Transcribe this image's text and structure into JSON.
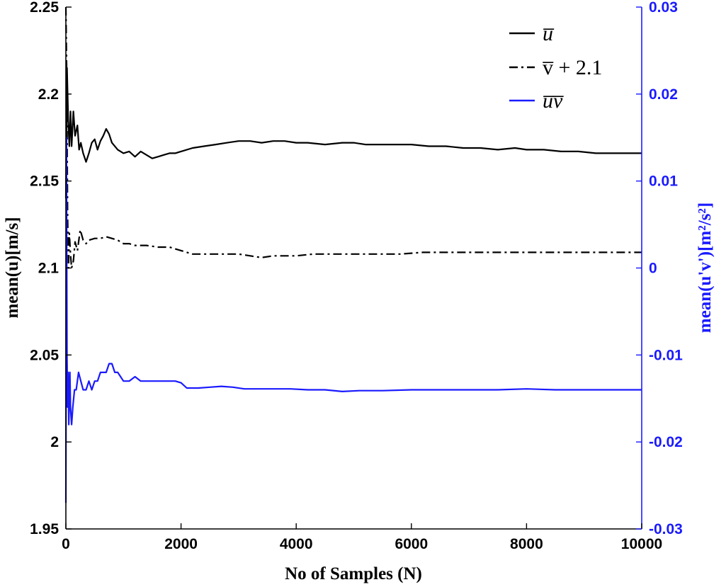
{
  "chart_data": {
    "type": "line",
    "xlabel": "No of Samples (N)",
    "ylabel": "mean(u)[m/s]",
    "y2label": "mean(u'v')[m²/s²]",
    "xlim": [
      0,
      10000
    ],
    "ylim": [
      1.95,
      2.25
    ],
    "y2lim": [
      -0.03,
      0.03
    ],
    "x_ticks": [
      "0",
      "2000",
      "4000",
      "6000",
      "8000",
      "10000"
    ],
    "y_ticks": [
      "1.95",
      "2",
      "2.05",
      "2.1",
      "2.15",
      "2.2",
      "2.25"
    ],
    "y2_ticks": [
      "-0.03",
      "-0.02",
      "-0.01",
      "0",
      "0.01",
      "0.02",
      "0.03"
    ],
    "grid": false,
    "legend_position": "top-right",
    "series": [
      {
        "name": "u̅",
        "axis": "left",
        "color": "#000000",
        "style": "solid",
        "x": [
          0,
          20,
          40,
          60,
          80,
          100,
          130,
          160,
          200,
          230,
          260,
          300,
          350,
          400,
          450,
          500,
          550,
          600,
          650,
          700,
          750,
          800,
          900,
          1000,
          1100,
          1200,
          1300,
          1400,
          1500,
          1600,
          1700,
          1800,
          1900,
          2000,
          2200,
          2400,
          2600,
          2800,
          3000,
          3200,
          3400,
          3600,
          3800,
          4000,
          4200,
          4500,
          4800,
          5000,
          5200,
          5500,
          5800,
          6000,
          6300,
          6600,
          6900,
          7200,
          7500,
          7800,
          8000,
          8300,
          8600,
          8900,
          9200,
          9400,
          9700,
          10000
        ],
        "values": [
          2.14,
          2.215,
          2.185,
          2.17,
          2.19,
          2.17,
          2.19,
          2.176,
          2.182,
          2.168,
          2.172,
          2.166,
          2.161,
          2.166,
          2.172,
          2.174,
          2.168,
          2.173,
          2.176,
          2.18,
          2.177,
          2.172,
          2.168,
          2.166,
          2.167,
          2.164,
          2.167,
          2.165,
          2.163,
          2.164,
          2.165,
          2.166,
          2.166,
          2.167,
          2.169,
          2.17,
          2.171,
          2.172,
          2.173,
          2.173,
          2.172,
          2.173,
          2.173,
          2.172,
          2.172,
          2.171,
          2.172,
          2.172,
          2.171,
          2.171,
          2.171,
          2.171,
          2.17,
          2.17,
          2.169,
          2.169,
          2.168,
          2.169,
          2.168,
          2.168,
          2.167,
          2.167,
          2.166,
          2.166,
          2.166,
          2.166
        ]
      },
      {
        "name": "v̅ + 2.1",
        "axis": "left",
        "color": "#000000",
        "style": "dashdot",
        "x": [
          0,
          15,
          30,
          45,
          60,
          80,
          100,
          130,
          160,
          200,
          250,
          300,
          350,
          400,
          500,
          600,
          700,
          800,
          900,
          1000,
          1100,
          1200,
          1400,
          1600,
          1800,
          2000,
          2200,
          2400,
          2600,
          2800,
          3000,
          3200,
          3400,
          3600,
          3800,
          4000,
          4300,
          4600,
          5000,
          5400,
          5800,
          6200,
          6600,
          7000,
          7500,
          8000,
          8500,
          9000,
          9500,
          10000
        ],
        "values": [
          2.25,
          2.21,
          2.13,
          2.1,
          2.12,
          2.108,
          2.1,
          2.104,
          2.115,
          2.11,
          2.122,
          2.116,
          2.114,
          2.116,
          2.117,
          2.117,
          2.118,
          2.117,
          2.116,
          2.114,
          2.114,
          2.113,
          2.113,
          2.112,
          2.112,
          2.11,
          2.108,
          2.108,
          2.108,
          2.108,
          2.108,
          2.107,
          2.106,
          2.107,
          2.107,
          2.107,
          2.108,
          2.108,
          2.108,
          2.108,
          2.108,
          2.109,
          2.109,
          2.109,
          2.109,
          2.109,
          2.109,
          2.109,
          2.109,
          2.109
        ]
      },
      {
        "name": "u̅v̅",
        "axis": "right",
        "color": "#1a1aff",
        "style": "solid",
        "x": [
          0,
          10,
          20,
          30,
          40,
          50,
          60,
          70,
          80,
          100,
          120,
          150,
          180,
          220,
          260,
          300,
          350,
          400,
          450,
          500,
          550,
          600,
          650,
          700,
          750,
          800,
          850,
          900,
          1000,
          1100,
          1200,
          1300,
          1400,
          1500,
          1600,
          1700,
          1800,
          1900,
          2000,
          2100,
          2300,
          2500,
          2700,
          2900,
          3100,
          3300,
          3600,
          3900,
          4200,
          4500,
          4800,
          5100,
          5500,
          6000,
          6500,
          7000,
          7500,
          8000,
          8500,
          9000,
          9500,
          10000
        ],
        "values": [
          -0.027,
          0.015,
          -0.01,
          -0.016,
          -0.012,
          -0.018,
          -0.015,
          -0.012,
          -0.016,
          -0.018,
          -0.016,
          -0.014,
          -0.014,
          -0.012,
          -0.013,
          -0.014,
          -0.014,
          -0.013,
          -0.014,
          -0.013,
          -0.013,
          -0.012,
          -0.012,
          -0.012,
          -0.011,
          -0.011,
          -0.012,
          -0.012,
          -0.013,
          -0.013,
          -0.0125,
          -0.013,
          -0.013,
          -0.013,
          -0.013,
          -0.013,
          -0.013,
          -0.013,
          -0.0132,
          -0.0138,
          -0.0138,
          -0.0137,
          -0.0136,
          -0.0137,
          -0.0139,
          -0.0139,
          -0.0139,
          -0.0139,
          -0.014,
          -0.014,
          -0.0142,
          -0.0141,
          -0.0141,
          -0.014,
          -0.014,
          -0.014,
          -0.014,
          -0.0139,
          -0.014,
          -0.014,
          -0.014,
          -0.014
        ]
      }
    ]
  }
}
